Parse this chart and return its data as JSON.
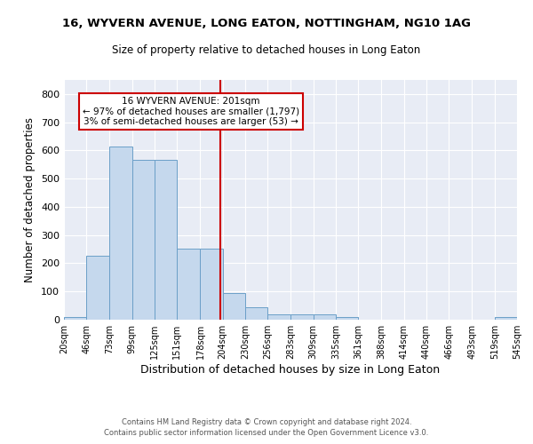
{
  "title_line1": "16, WYVERN AVENUE, LONG EATON, NOTTINGHAM, NG10 1AG",
  "title_line2": "Size of property relative to detached houses in Long Eaton",
  "xlabel": "Distribution of detached houses by size in Long Eaton",
  "ylabel": "Number of detached properties",
  "annotation_title": "16 WYVERN AVENUE: 201sqm",
  "annotation_line2": "← 97% of detached houses are smaller (1,797)",
  "annotation_line3": "3% of semi-detached houses are larger (53) →",
  "property_size": 201,
  "bin_edges": [
    20,
    46,
    73,
    99,
    125,
    151,
    178,
    204,
    230,
    256,
    283,
    309,
    335,
    361,
    388,
    414,
    440,
    466,
    493,
    519,
    545
  ],
  "bar_heights": [
    10,
    228,
    615,
    568,
    568,
    253,
    253,
    96,
    44,
    20,
    20,
    20,
    10,
    0,
    0,
    0,
    0,
    0,
    0,
    10
  ],
  "bar_color": "#c5d8ed",
  "bar_edge_color": "#6b9fc8",
  "vline_color": "#cc0000",
  "annotation_box_color": "#cc0000",
  "background_color": "#e8ecf5",
  "grid_color": "#ffffff",
  "ylim": [
    0,
    850
  ],
  "yticks": [
    0,
    100,
    200,
    300,
    400,
    500,
    600,
    700,
    800
  ],
  "footer_line1": "Contains HM Land Registry data © Crown copyright and database right 2024.",
  "footer_line2": "Contains public sector information licensed under the Open Government Licence v3.0."
}
